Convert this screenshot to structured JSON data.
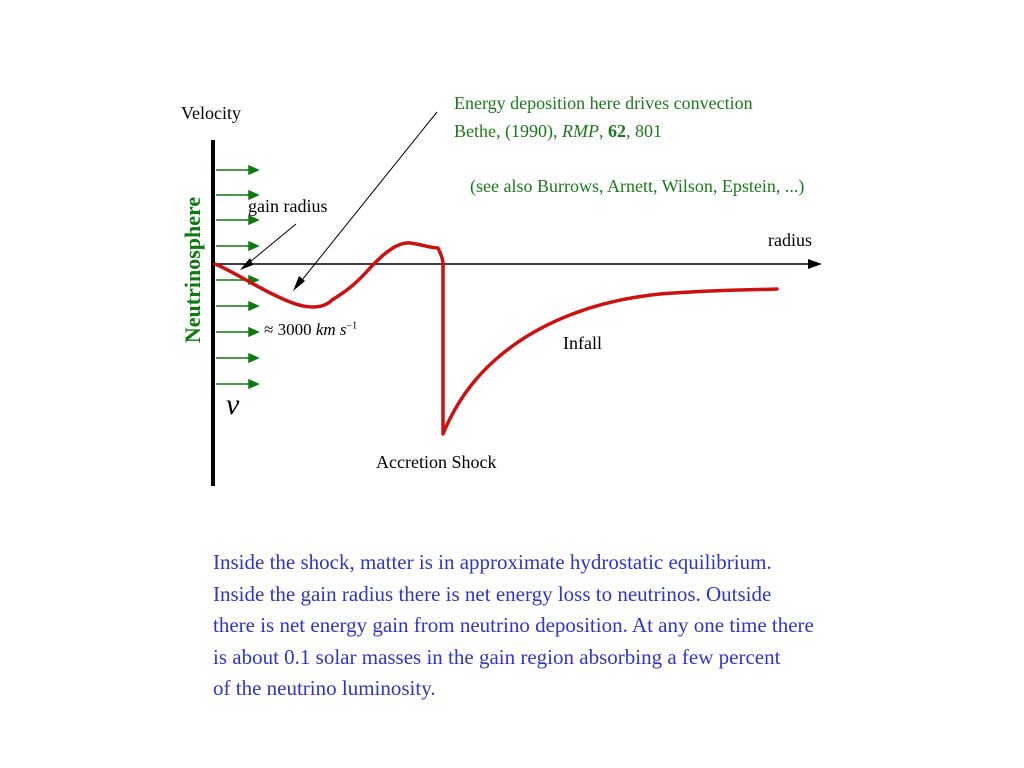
{
  "axes": {
    "y_label": "Velocity",
    "x_label": "radius"
  },
  "neutrinosphere": {
    "label": "Neutrinosphere",
    "symbol": "ν",
    "speed": {
      "approx": "≈",
      "value": "3000",
      "unit": "km s",
      "exponent": "−1"
    }
  },
  "annotations": {
    "gain_radius": "gain radius",
    "energy_line1": "Energy deposition here drives convection",
    "energy_line2_prefix": "Bethe, (1990), ",
    "energy_line2_journal": "RMP",
    "energy_line2_sep": ", ",
    "energy_line2_volume": "62",
    "energy_line2_pages": ", 801",
    "see_also": "(see also Burrows, Arnett, Wilson, Epstein, ...)",
    "infall": "Infall",
    "accretion_shock": "Accretion Shock"
  },
  "note": {
    "lines": [
      "Inside the shock, matter is in approximate hydrostatic equilibrium.",
      "Inside the gain radius there is net energy loss to neutrinos. Outside",
      "there is net energy gain from neutrino deposition. At any one time there",
      "is about 0.1 solar masses in the gain region absorbing a few percent",
      "of the neutrino luminosity."
    ]
  },
  "colors": {
    "curve": "#cc1111",
    "arrows": "#0d7a0d",
    "green_text": "#1a7a1a",
    "note_text": "#2e35c8",
    "axes": "#000000"
  }
}
